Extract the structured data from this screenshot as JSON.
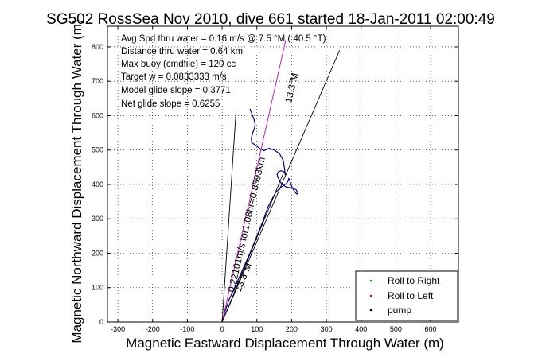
{
  "chart_data": {
    "type": "line",
    "title": "SG502 RossSea Nov 2010, dive 661 started 18-Jan-2011 02:00:49",
    "xlabel": "Magnetic Eastward Displacement Through Water (m)",
    "ylabel": "Magnetic Northward Displacement Through Water (m)",
    "xlim": [
      -330,
      680
    ],
    "ylim": [
      0,
      860
    ],
    "xticks": [
      "-300",
      "-200",
      "-100",
      "0",
      "100",
      "200",
      "300",
      "400",
      "500",
      "600"
    ],
    "yticks": [
      "0",
      "100",
      "200",
      "300",
      "400",
      "500",
      "600",
      "700",
      "800"
    ],
    "grid": true,
    "legend_position": "bottom-right",
    "info_lines": [
      "Avg Spd thru water = 0.16 m/s @ 7.5 °M ( 40.5 °T)",
      "Distance thru water = 0.64 km",
      "Max buoy (cmdfile) = 120 cc",
      "Target w = 0.0833333 m/s",
      "Model glide slope = 0.3771",
      "Net glide slope = 0.6255"
    ],
    "annotations": {
      "course_label": "13.3°M",
      "course_label_lower": "13.3°M",
      "current_label": "0.22101m/s for1.08hr=0.8593km"
    },
    "legend": [
      {
        "name": "Roll to Right",
        "color": "#00aa00"
      },
      {
        "name": "Roll to Left",
        "color": "#ff0000"
      },
      {
        "name": "pump",
        "color": "#000000"
      }
    ],
    "series": [
      {
        "role": "track",
        "color": "#00008b",
        "x": [
          0,
          8,
          20,
          38,
          58,
          80,
          100,
          118,
          132,
          145,
          155,
          162,
          170,
          178,
          185,
          190,
          192,
          195,
          200,
          208,
          215,
          218,
          213,
          200,
          185,
          172,
          165,
          160,
          158,
          162,
          170,
          178,
          182,
          176,
          165,
          150,
          135,
          120,
          108,
          98,
          90,
          85,
          84,
          88,
          93,
          95,
          92,
          86,
          80
        ],
        "y": [
          0,
          30,
          65,
          105,
          150,
          200,
          250,
          295,
          335,
          360,
          378,
          385,
          392,
          398,
          403,
          410,
          418,
          410,
          395,
          380,
          372,
          375,
          385,
          390,
          392,
          400,
          412,
          422,
          430,
          437,
          440,
          437,
          428,
          470,
          490,
          500,
          505,
          498,
          505,
          513,
          518,
          522,
          535,
          550,
          563,
          575,
          588,
          605,
          620
        ]
      },
      {
        "role": "heading-line",
        "color": "#cc00cc",
        "x": [
          0,
          183
        ],
        "y": [
          0,
          820
        ]
      },
      {
        "role": "course-line",
        "color": "#000000",
        "x": [
          0,
          338
        ],
        "y": [
          0,
          790
        ]
      },
      {
        "role": "current-line",
        "color": "#000000",
        "x": [
          0,
          40
        ],
        "y": [
          0,
          615
        ]
      },
      {
        "role": "glide-line",
        "color": "#000000",
        "x": [
          0,
          175
        ],
        "y": [
          0,
          430
        ]
      }
    ]
  }
}
